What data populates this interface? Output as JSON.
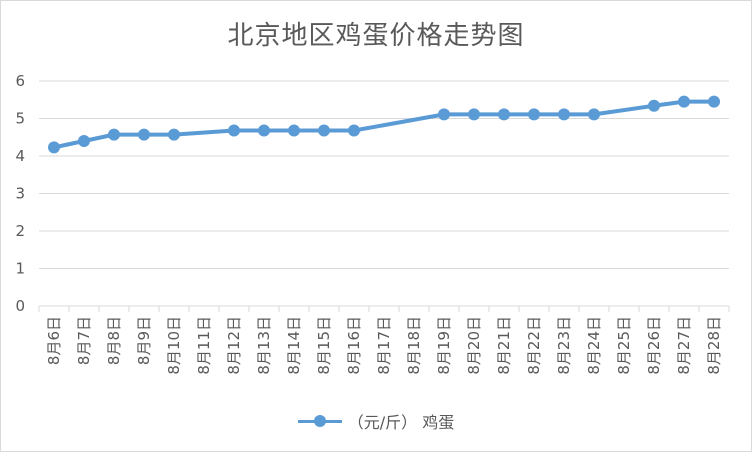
{
  "colors": {
    "series": "#5b9bd5",
    "grid": "#d9d9d9",
    "text": "#595959"
  },
  "chart_data": {
    "type": "line",
    "title": "北京地区鸡蛋价格走势图",
    "xlabel": "",
    "ylabel": "",
    "ylim": [
      0,
      6
    ],
    "yticks": [
      "0",
      "1",
      "2",
      "3",
      "4",
      "5",
      "6"
    ],
    "grid": true,
    "legend_position": "bottom",
    "categories": [
      "8月6日",
      "8月7日",
      "8月8日",
      "8月9日",
      "8月10日",
      "8月11日",
      "8月12日",
      "8月13日",
      "8月14日",
      "8月15日",
      "8月16日",
      "8月17日",
      "8月18日",
      "8月19日",
      "8月20日",
      "8月21日",
      "8月22日",
      "8月23日",
      "8月24日",
      "8月25日",
      "8月26日",
      "8月27日",
      "8月28日"
    ],
    "series": [
      {
        "name": "（元/斤） 鸡蛋",
        "values": [
          4.23,
          4.4,
          4.57,
          4.57,
          4.57,
          null,
          4.68,
          4.68,
          4.68,
          4.68,
          4.68,
          null,
          null,
          5.11,
          5.11,
          5.11,
          5.11,
          5.11,
          5.11,
          null,
          5.34,
          5.45,
          5.45
        ]
      }
    ]
  }
}
